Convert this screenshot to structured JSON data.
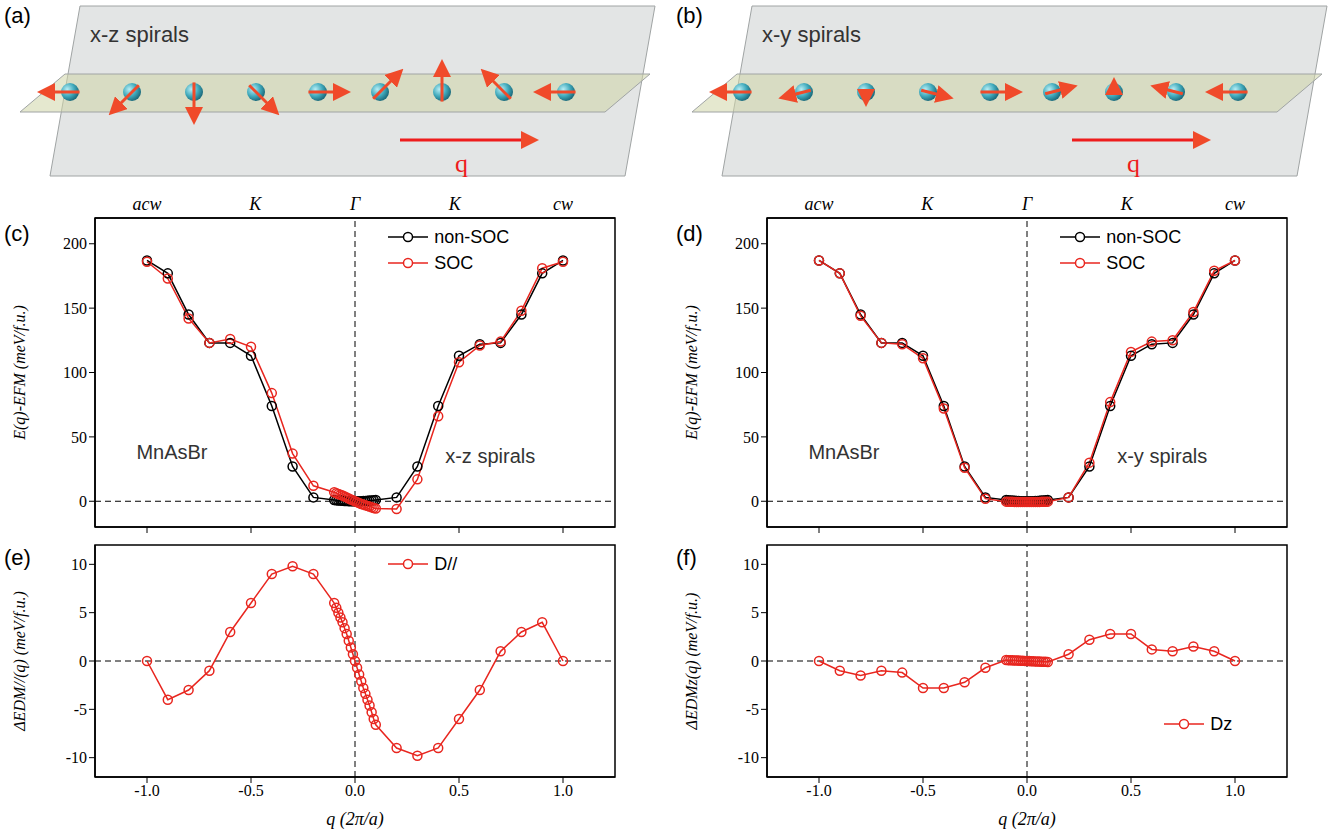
{
  "illustrations": [
    {
      "panel_label": "(a)",
      "title": "x-z spirals",
      "arrow_label": "q"
    },
    {
      "panel_label": "(b)",
      "title": "x-y spirals",
      "arrow_label": "q"
    }
  ],
  "chart_data": [
    {
      "panel_label": "(c)",
      "type": "line",
      "ylabel": "E(q)-EFM (meV/f.u.)",
      "x": [
        -1.0,
        -0.9,
        -0.8,
        -0.7,
        -0.6,
        -0.5,
        -0.4,
        -0.3,
        -0.2,
        -0.1,
        -0.09,
        -0.08,
        -0.07,
        -0.06,
        -0.05,
        -0.04,
        -0.03,
        -0.02,
        -0.01,
        0,
        0.01,
        0.02,
        0.03,
        0.04,
        0.05,
        0.06,
        0.07,
        0.08,
        0.09,
        0.1,
        0.2,
        0.3,
        0.4,
        0.5,
        0.6,
        0.7,
        0.8,
        0.9,
        1.0
      ],
      "series": [
        {
          "name": "non-SOC",
          "color": "#000000",
          "marker": "circle",
          "values": [
            187,
            177,
            145,
            123,
            123,
            113,
            74,
            27,
            3,
            1.0,
            0.8,
            0.65,
            0.5,
            0.36,
            0.25,
            0.16,
            0.09,
            0.04,
            0.01,
            0,
            0.01,
            0.04,
            0.09,
            0.16,
            0.25,
            0.36,
            0.5,
            0.65,
            0.8,
            1.0,
            3,
            27,
            74,
            113,
            122,
            123,
            145,
            177,
            187
          ]
        },
        {
          "name": "SOC",
          "color": "#e8261f",
          "marker": "circle",
          "values": [
            186,
            173,
            142,
            123,
            126,
            120,
            84,
            37,
            12,
            7.0,
            6.3,
            5.6,
            5.0,
            4.4,
            3.7,
            3.0,
            2.2,
            1.4,
            0.7,
            0,
            -0.7,
            -1.4,
            -2.1,
            -2.6,
            -3.2,
            -3.6,
            -4.1,
            -4.7,
            -5.2,
            -5.6,
            -6,
            17,
            66,
            108,
            121,
            124,
            148,
            181,
            186
          ]
        }
      ],
      "xlim": [
        -1.25,
        1.25
      ],
      "xticks": [
        -1.0,
        -0.5,
        0,
        0.5,
        1.0
      ],
      "tick_labels": "y",
      "x2ticks": [
        {
          "value": -1.0,
          "label": "acw"
        },
        {
          "value": -0.48,
          "label": "K"
        },
        {
          "value": 0,
          "label": "Γ"
        },
        {
          "value": 0.48,
          "label": "K"
        },
        {
          "value": 1.0,
          "label": "cw"
        }
      ],
      "ylim": [
        -20,
        220
      ],
      "yticks": [
        0,
        50,
        100,
        150,
        200
      ],
      "reference_lines": {
        "x": [
          0
        ],
        "y": [
          0
        ]
      },
      "annotations": [
        {
          "text": "MnAsBr",
          "x": -0.88,
          "y": 38
        },
        {
          "text": "x-z spirals",
          "x": 0.65,
          "y": 35
        }
      ],
      "legend": "top"
    },
    {
      "panel_label": "(d)",
      "type": "line",
      "ylabel": "E(q)-EFM (meV/f.u.)",
      "x": [
        -1.0,
        -0.9,
        -0.8,
        -0.7,
        -0.6,
        -0.5,
        -0.4,
        -0.3,
        -0.2,
        -0.1,
        -0.09,
        -0.08,
        -0.07,
        -0.06,
        -0.05,
        -0.04,
        -0.03,
        -0.02,
        -0.01,
        0,
        0.01,
        0.02,
        0.03,
        0.04,
        0.05,
        0.06,
        0.07,
        0.08,
        0.09,
        0.1,
        0.2,
        0.3,
        0.4,
        0.5,
        0.6,
        0.7,
        0.8,
        0.9,
        1.0
      ],
      "series": [
        {
          "name": "non-SOC",
          "color": "#000000",
          "marker": "circle",
          "values": [
            187,
            177,
            145,
            123,
            123,
            113,
            74,
            27,
            3,
            1.0,
            0.8,
            0.65,
            0.5,
            0.36,
            0.25,
            0.16,
            0.09,
            0.04,
            0.01,
            0,
            0.01,
            0.04,
            0.09,
            0.16,
            0.25,
            0.36,
            0.5,
            0.65,
            0.8,
            1.0,
            3,
            27,
            74,
            113,
            122,
            123,
            145,
            177,
            187
          ]
        },
        {
          "name": "SOC",
          "color": "#e8261f",
          "marker": "circle",
          "values": [
            187,
            177,
            144,
            123,
            122,
            111,
            72,
            26,
            2,
            -0.3,
            -0.35,
            -0.4,
            -0.45,
            -0.5,
            -0.5,
            -0.5,
            -0.5,
            -0.5,
            -0.5,
            -0.5,
            -0.5,
            -0.5,
            -0.5,
            -0.5,
            -0.5,
            -0.5,
            -0.45,
            -0.4,
            -0.35,
            -0.3,
            3,
            30,
            77,
            116,
            124,
            125,
            147,
            179,
            187
          ]
        }
      ],
      "xlim": [
        -1.25,
        1.25
      ],
      "xticks": [
        -1.0,
        -0.5,
        0,
        0.5,
        1.0
      ],
      "tick_labels": "y",
      "x2ticks": [
        {
          "value": -1.0,
          "label": "acw"
        },
        {
          "value": -0.48,
          "label": "K"
        },
        {
          "value": 0,
          "label": "Γ"
        },
        {
          "value": 0.48,
          "label": "K"
        },
        {
          "value": 1.0,
          "label": "cw"
        }
      ],
      "ylim": [
        -20,
        220
      ],
      "yticks": [
        0,
        50,
        100,
        150,
        200
      ],
      "reference_lines": {
        "x": [
          0
        ],
        "y": [
          0
        ]
      },
      "annotations": [
        {
          "text": "MnAsBr",
          "x": -0.88,
          "y": 38
        },
        {
          "text": "x-y spirals",
          "x": 0.65,
          "y": 35
        }
      ],
      "legend": "top"
    },
    {
      "panel_label": "(e)",
      "type": "line",
      "xlabel": "q (2π/a)",
      "ylabel": "ΔEDM//(q) (meV/f.u.)",
      "x": [
        -1.0,
        -0.9,
        -0.8,
        -0.7,
        -0.6,
        -0.5,
        -0.4,
        -0.3,
        -0.2,
        -0.1,
        -0.09,
        -0.08,
        -0.07,
        -0.06,
        -0.05,
        -0.04,
        -0.03,
        -0.02,
        -0.01,
        0,
        0.01,
        0.02,
        0.03,
        0.04,
        0.05,
        0.06,
        0.07,
        0.08,
        0.09,
        0.1,
        0.2,
        0.3,
        0.4,
        0.5,
        0.6,
        0.7,
        0.8,
        0.9,
        1.0
      ],
      "series": [
        {
          "name": "D//",
          "color": "#e8261f",
          "marker": "circle",
          "values": [
            0,
            -4,
            -3,
            -1,
            3,
            6,
            9,
            9.8,
            9,
            6.0,
            5.5,
            5.0,
            4.5,
            4.0,
            3.4,
            2.8,
            2.1,
            1.4,
            0.7,
            0,
            -0.7,
            -1.4,
            -2.1,
            -2.8,
            -3.4,
            -4.0,
            -4.6,
            -5.3,
            -6.0,
            -6.6,
            -9,
            -9.8,
            -9,
            -6,
            -3,
            1,
            3,
            4,
            0
          ]
        }
      ],
      "xlim": [
        -1.25,
        1.25
      ],
      "xticks": [
        {
          "value": -1.0,
          "label": "-1.0"
        },
        {
          "value": -0.5,
          "label": "-0.5"
        },
        {
          "value": 0,
          "label": "0.0"
        },
        {
          "value": 0.5,
          "label": "0.5"
        },
        {
          "value": 1.0,
          "label": "1.0"
        }
      ],
      "ylim": [
        -12,
        12
      ],
      "yticks": [
        -10,
        -5,
        0,
        5,
        10
      ],
      "reference_lines": {
        "x": [
          0
        ],
        "y": [
          0
        ]
      },
      "legend": "top"
    },
    {
      "panel_label": "(f)",
      "type": "line",
      "xlabel": "q (2π/a)",
      "ylabel": "ΔEDMz(q) (meV/f.u.)",
      "x": [
        -1.0,
        -0.9,
        -0.8,
        -0.7,
        -0.6,
        -0.5,
        -0.4,
        -0.3,
        -0.2,
        -0.1,
        -0.09,
        -0.08,
        -0.07,
        -0.06,
        -0.05,
        -0.04,
        -0.03,
        -0.02,
        -0.01,
        0,
        0.01,
        0.02,
        0.03,
        0.04,
        0.05,
        0.06,
        0.07,
        0.08,
        0.09,
        0.1,
        0.2,
        0.3,
        0.4,
        0.5,
        0.6,
        0.7,
        0.8,
        0.9,
        1.0
      ],
      "series": [
        {
          "name": "Dz",
          "color": "#e8261f",
          "marker": "circle",
          "values": [
            0,
            -1,
            -1.5,
            -1,
            -1.2,
            -2.8,
            -2.8,
            -2.2,
            -0.7,
            0.1,
            0.09,
            0.08,
            0.07,
            0.06,
            0.05,
            0.04,
            0.03,
            0.02,
            0.01,
            0,
            -0.01,
            -0.02,
            -0.03,
            -0.04,
            -0.05,
            -0.06,
            -0.07,
            -0.08,
            -0.09,
            -0.1,
            0.7,
            2.2,
            2.8,
            2.8,
            1.2,
            1,
            1.5,
            1,
            0
          ]
        }
      ],
      "xlim": [
        -1.25,
        1.25
      ],
      "xticks": [
        {
          "value": -1.0,
          "label": "-1.0"
        },
        {
          "value": -0.5,
          "label": "-0.5"
        },
        {
          "value": 0,
          "label": "0.0"
        },
        {
          "value": 0.5,
          "label": "0.5"
        },
        {
          "value": 1.0,
          "label": "1.0"
        }
      ],
      "ylim": [
        -12,
        12
      ],
      "yticks": [
        -10,
        -5,
        0,
        5,
        10
      ],
      "reference_lines": {
        "x": [
          0
        ],
        "y": [
          0
        ]
      },
      "legend": "bottom right"
    }
  ]
}
